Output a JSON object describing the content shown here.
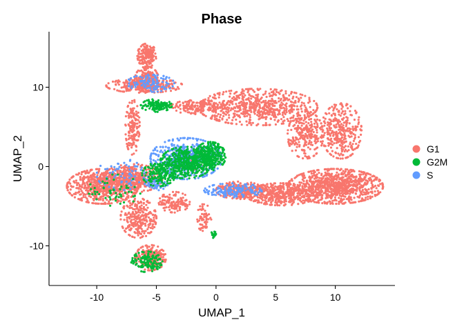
{
  "chart_data": {
    "type": "scatter",
    "title": "Phase",
    "xlabel": "UMAP_1",
    "ylabel": "UMAP_2",
    "xlim": [
      -14,
      15
    ],
    "ylim": [
      -15,
      17
    ],
    "x_ticks": [
      -10,
      -5,
      0,
      5,
      10
    ],
    "y_ticks": [
      -10,
      0,
      10
    ],
    "grid": false,
    "legend_position": "right",
    "series": [
      {
        "name": "G1",
        "color": "#F8766D"
      },
      {
        "name": "G2M",
        "color": "#00BA38"
      },
      {
        "name": "S",
        "color": "#619CFF"
      }
    ],
    "clusters": [
      {
        "series": "G1",
        "cx": -5.8,
        "cy": 14,
        "rx": 0.8,
        "ry": 1.5,
        "n": 160
      },
      {
        "series": "G1",
        "cx": -5.8,
        "cy": 11,
        "rx": 1.0,
        "ry": 1.6,
        "n": 180
      },
      {
        "series": "G1",
        "cx": -6.0,
        "cy": 10.2,
        "rx": 3.2,
        "ry": 0.9,
        "n": 280
      },
      {
        "series": "G1",
        "cx": -7.0,
        "cy": 5,
        "rx": 0.6,
        "ry": 3.5,
        "n": 160
      },
      {
        "series": "G1",
        "cx": -9.5,
        "cy": -2.5,
        "rx": 3.0,
        "ry": 2.2,
        "n": 650
      },
      {
        "series": "G1",
        "cx": -7.0,
        "cy": -1.5,
        "rx": 2.5,
        "ry": 1.8,
        "n": 420
      },
      {
        "series": "G1",
        "cx": -6.5,
        "cy": -6.5,
        "rx": 1.5,
        "ry": 2.5,
        "n": 260
      },
      {
        "series": "G1",
        "cx": -5.5,
        "cy": -11.5,
        "rx": 1.3,
        "ry": 1.6,
        "n": 220
      },
      {
        "series": "G1",
        "cx": -3.5,
        "cy": -4.5,
        "rx": 1.3,
        "ry": 1.3,
        "n": 130
      },
      {
        "series": "G1",
        "cx": -1.0,
        "cy": -6.5,
        "rx": 0.6,
        "ry": 1.8,
        "n": 60
      },
      {
        "series": "G1",
        "cx": 3.5,
        "cy": 7.5,
        "rx": 5.0,
        "ry": 2.3,
        "n": 650
      },
      {
        "series": "G1",
        "cx": -1.5,
        "cy": 7.5,
        "rx": 2.3,
        "ry": 0.9,
        "n": 160
      },
      {
        "series": "G1",
        "cx": 7.5,
        "cy": 4,
        "rx": 1.5,
        "ry": 3.0,
        "n": 260
      },
      {
        "series": "G1",
        "cx": 10.5,
        "cy": 4.5,
        "rx": 1.7,
        "ry": 3.5,
        "n": 320
      },
      {
        "series": "G1",
        "cx": 10.0,
        "cy": -2.5,
        "rx": 4.0,
        "ry": 2.2,
        "n": 950
      },
      {
        "series": "G1",
        "cx": 5.5,
        "cy": -3.5,
        "rx": 3.0,
        "ry": 1.4,
        "n": 420
      },
      {
        "series": "G1",
        "cx": 2.0,
        "cy": -3.0,
        "rx": 2.0,
        "ry": 1.1,
        "n": 260
      },
      {
        "series": "G1",
        "cx": -2.0,
        "cy": 1.0,
        "rx": 1.2,
        "ry": 1.5,
        "n": 60
      },
      {
        "series": "S",
        "cx": -2.5,
        "cy": 1.0,
        "rx": 3.0,
        "ry": 2.6,
        "n": 480
      },
      {
        "series": "S",
        "cx": -5.5,
        "cy": 10.5,
        "rx": 2.0,
        "ry": 1.1,
        "n": 100
      },
      {
        "series": "S",
        "cx": -8.0,
        "cy": -1.0,
        "rx": 2.0,
        "ry": 2.0,
        "n": 70
      },
      {
        "series": "S",
        "cx": 1.5,
        "cy": -3.0,
        "rx": 2.5,
        "ry": 0.9,
        "n": 140
      },
      {
        "series": "S",
        "cx": -5.0,
        "cy": -2.0,
        "rx": 1.0,
        "ry": 1.0,
        "n": 60
      },
      {
        "series": "G2M",
        "cx": -0.5,
        "cy": 1.3,
        "rx": 1.3,
        "ry": 1.8,
        "n": 320
      },
      {
        "series": "G2M",
        "cx": -2.5,
        "cy": 0.5,
        "rx": 2.2,
        "ry": 2.0,
        "n": 420
      },
      {
        "series": "G2M",
        "cx": -4.8,
        "cy": -1.0,
        "rx": 1.4,
        "ry": 1.5,
        "n": 160
      },
      {
        "series": "G2M",
        "cx": -5.0,
        "cy": 7.7,
        "rx": 1.3,
        "ry": 0.8,
        "n": 120
      },
      {
        "series": "G2M",
        "cx": -5.8,
        "cy": -12.0,
        "rx": 1.3,
        "ry": 1.3,
        "n": 130
      },
      {
        "series": "G2M",
        "cx": -8.5,
        "cy": -3.0,
        "rx": 2.2,
        "ry": 2.0,
        "n": 55
      },
      {
        "series": "G2M",
        "cx": -0.2,
        "cy": -8.6,
        "rx": 0.25,
        "ry": 0.4,
        "n": 20
      }
    ]
  }
}
